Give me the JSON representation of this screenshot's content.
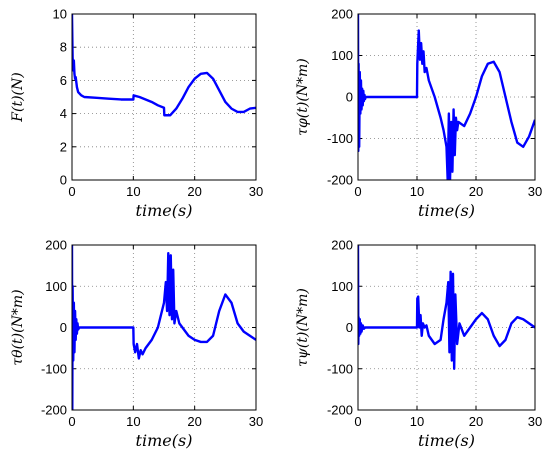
{
  "chart_data": [
    {
      "type": "line",
      "xlabel": "time(s)",
      "ylabel": "F(t)(N)",
      "xlim": [
        0,
        30
      ],
      "ylim": [
        0,
        10
      ],
      "xticks": [
        "0",
        "10",
        "20",
        "30"
      ],
      "yticks": [
        "0",
        "2",
        "4",
        "6",
        "8",
        "10"
      ],
      "grid": true,
      "color": "#0000ff",
      "x": [
        0,
        0.1,
        0.2,
        0.3,
        0.4,
        0.5,
        0.6,
        0.8,
        1.0,
        1.5,
        2,
        4,
        6,
        8,
        10,
        10.05,
        10.5,
        11,
        12,
        13,
        14,
        15,
        15.05,
        16,
        17,
        18,
        19,
        20,
        21,
        22,
        23,
        24,
        25,
        26,
        27,
        28,
        29,
        30
      ],
      "y": [
        10,
        7.4,
        6.6,
        7.2,
        6.4,
        6.1,
        6.2,
        5.6,
        5.3,
        5.1,
        5.0,
        4.95,
        4.9,
        4.85,
        4.85,
        5.1,
        5.05,
        5.0,
        4.85,
        4.7,
        4.5,
        4.35,
        3.9,
        3.9,
        4.3,
        4.9,
        5.6,
        6.1,
        6.4,
        6.45,
        6.1,
        5.4,
        4.7,
        4.3,
        4.1,
        4.1,
        4.3,
        4.35
      ]
    },
    {
      "type": "line",
      "xlabel": "time(s)",
      "ylabel": "τφ(t)(N*m)",
      "xlim": [
        0,
        30
      ],
      "ylim": [
        -200,
        200
      ],
      "xticks": [
        "0",
        "10",
        "20",
        "30"
      ],
      "yticks": [
        "-200",
        "-100",
        "0",
        "100",
        "200"
      ],
      "grid": true,
      "color": "#0000ff",
      "x": [
        0,
        0.05,
        0.1,
        0.2,
        0.3,
        0.4,
        0.5,
        0.6,
        0.7,
        0.8,
        0.9,
        1.0,
        1.1,
        1.2,
        1.3,
        1.5,
        2,
        4,
        6,
        8,
        10,
        10.05,
        10.3,
        10.5,
        10.7,
        10.9,
        11.1,
        11.3,
        11.6,
        12,
        13,
        14,
        14.5,
        15.0,
        15.2,
        15.4,
        15.6,
        15.8,
        16.0,
        16.2,
        16.4,
        16.6,
        16.8,
        17,
        18,
        19,
        20,
        21,
        22,
        23,
        24,
        25,
        26,
        27,
        28,
        29,
        30
      ],
      "y": [
        200,
        -130,
        80,
        -120,
        60,
        -40,
        40,
        -30,
        20,
        -20,
        15,
        -10,
        5,
        -5,
        0,
        0,
        0,
        0,
        0,
        0,
        0,
        80,
        160,
        90,
        130,
        80,
        110,
        60,
        70,
        40,
        0,
        -50,
        -80,
        -120,
        -200,
        -40,
        -200,
        -60,
        -180,
        -30,
        -140,
        -50,
        -80,
        -60,
        -70,
        -40,
        0,
        50,
        80,
        85,
        60,
        0,
        -60,
        -110,
        -120,
        -95,
        -55
      ]
    },
    {
      "type": "line",
      "xlabel": "time(s)",
      "ylabel": "τθ(t)(N*m)",
      "xlim": [
        0,
        30
      ],
      "ylim": [
        -200,
        200
      ],
      "xticks": [
        "0",
        "10",
        "20",
        "30"
      ],
      "yticks": [
        "-200",
        "-100",
        "0",
        "100",
        "200"
      ],
      "grid": true,
      "color": "#0000ff",
      "x": [
        0,
        0.05,
        0.1,
        0.2,
        0.3,
        0.4,
        0.5,
        0.6,
        0.7,
        0.8,
        0.9,
        1.0,
        1.2,
        1.5,
        2,
        4,
        6,
        8,
        10,
        10.05,
        10.3,
        10.6,
        10.9,
        11.2,
        11.5,
        12,
        13,
        14,
        14.5,
        15,
        15.3,
        15.5,
        15.7,
        15.9,
        16.1,
        16.3,
        16.5,
        16.7,
        17,
        17.5,
        18,
        19,
        20,
        21,
        22,
        23,
        24,
        25,
        26,
        27,
        28,
        29,
        30
      ],
      "y": [
        200,
        -200,
        100,
        -80,
        60,
        -60,
        40,
        -30,
        20,
        -15,
        10,
        -5,
        0,
        0,
        0,
        0,
        0,
        0,
        0,
        -40,
        -60,
        -40,
        -75,
        -55,
        -65,
        -50,
        -30,
        0,
        30,
        60,
        110,
        40,
        180,
        30,
        175,
        20,
        140,
        10,
        40,
        10,
        0,
        -20,
        -30,
        -35,
        -35,
        -20,
        40,
        80,
        60,
        10,
        -10,
        -20,
        -30
      ]
    },
    {
      "type": "line",
      "xlabel": "time(s)",
      "ylabel": "τψ(t)(N*m)",
      "xlim": [
        0,
        30
      ],
      "ylim": [
        -200,
        200
      ],
      "xticks": [
        "0",
        "10",
        "20",
        "30"
      ],
      "yticks": [
        "-200",
        "-100",
        "0",
        "100",
        "200"
      ],
      "grid": true,
      "color": "#0000ff",
      "x": [
        0,
        0.05,
        0.1,
        0.2,
        0.3,
        0.4,
        0.5,
        0.6,
        0.8,
        1.0,
        1.2,
        1.5,
        2,
        4,
        6,
        8,
        10,
        10.05,
        10.2,
        10.4,
        10.6,
        10.8,
        11.0,
        11.3,
        11.6,
        12,
        13,
        14,
        14.5,
        15,
        15.3,
        15.5,
        15.7,
        15.9,
        16.1,
        16.3,
        16.5,
        16.8,
        17.2,
        18,
        19,
        20,
        21,
        22,
        23,
        24,
        25,
        26,
        27,
        28,
        29,
        30
      ],
      "y": [
        200,
        -40,
        25,
        -20,
        20,
        -15,
        10,
        -10,
        5,
        -3,
        0,
        0,
        0,
        0,
        0,
        0,
        0,
        70,
        75,
        0,
        30,
        -20,
        10,
        0,
        5,
        -20,
        -40,
        -30,
        20,
        60,
        110,
        -60,
        135,
        -80,
        130,
        -100,
        80,
        -40,
        10,
        -20,
        0,
        20,
        35,
        20,
        -20,
        -45,
        -30,
        10,
        25,
        20,
        10,
        0
      ]
    }
  ]
}
